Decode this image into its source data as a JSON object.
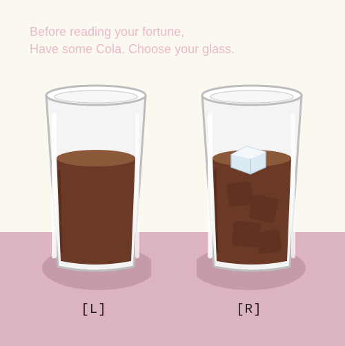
{
  "prompt": {
    "line1": "Before reading your fortune,",
    "line2": "Have some Cola. Choose your glass."
  },
  "choices": {
    "left": {
      "label": "[L]",
      "ice": false
    },
    "right": {
      "label": "[R]",
      "ice": true
    }
  },
  "colors": {
    "background": "#fbf9ef",
    "table": "#dcb3c2",
    "shadow": "#c59aab",
    "prompt_text": "#e9b9cc",
    "cola": "#6b3a26",
    "cola_surface": "#8c5a3a",
    "ice": "#dbe9f3",
    "glass_outline": "#bdbdbd"
  }
}
